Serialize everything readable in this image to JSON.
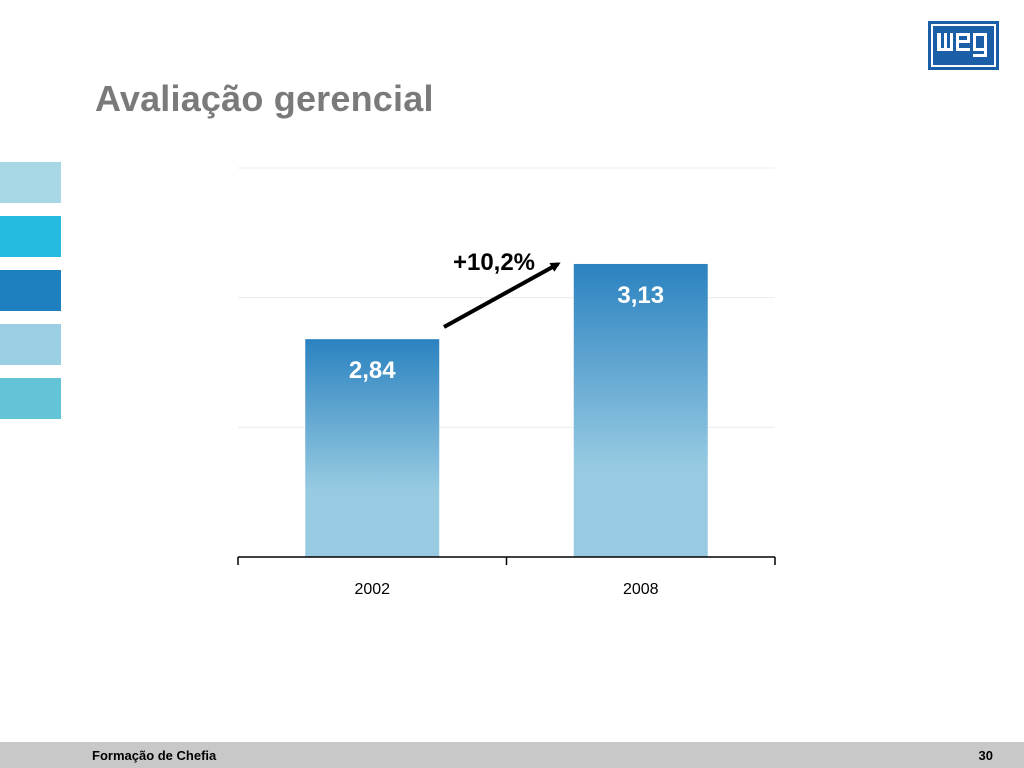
{
  "slide": {
    "title": "Avaliação gerencial",
    "footer_left": "Formação de Chefia",
    "page_number": "30",
    "logo_text": "weg"
  },
  "colors": {
    "title": "#7a7a7a",
    "bar_top": "#2b82c0",
    "bar_bottom": "#98cbe2",
    "swatches": [
      "#a8d8e6",
      "#25bbe0",
      "#1f80bf",
      "#9acfe4",
      "#63c4d8"
    ],
    "logo": "#1a5ea8",
    "footer_bg": "#c8c8c8"
  },
  "chart_data": {
    "type": "bar",
    "categories": [
      "2002",
      "2008"
    ],
    "values": [
      2.84,
      3.13
    ],
    "value_labels": [
      "2,84",
      "3,13"
    ],
    "annotation": "+10,2%",
    "ylim": [
      2.0,
      3.5
    ],
    "grid": true,
    "title": "",
    "xlabel": "",
    "ylabel": ""
  }
}
